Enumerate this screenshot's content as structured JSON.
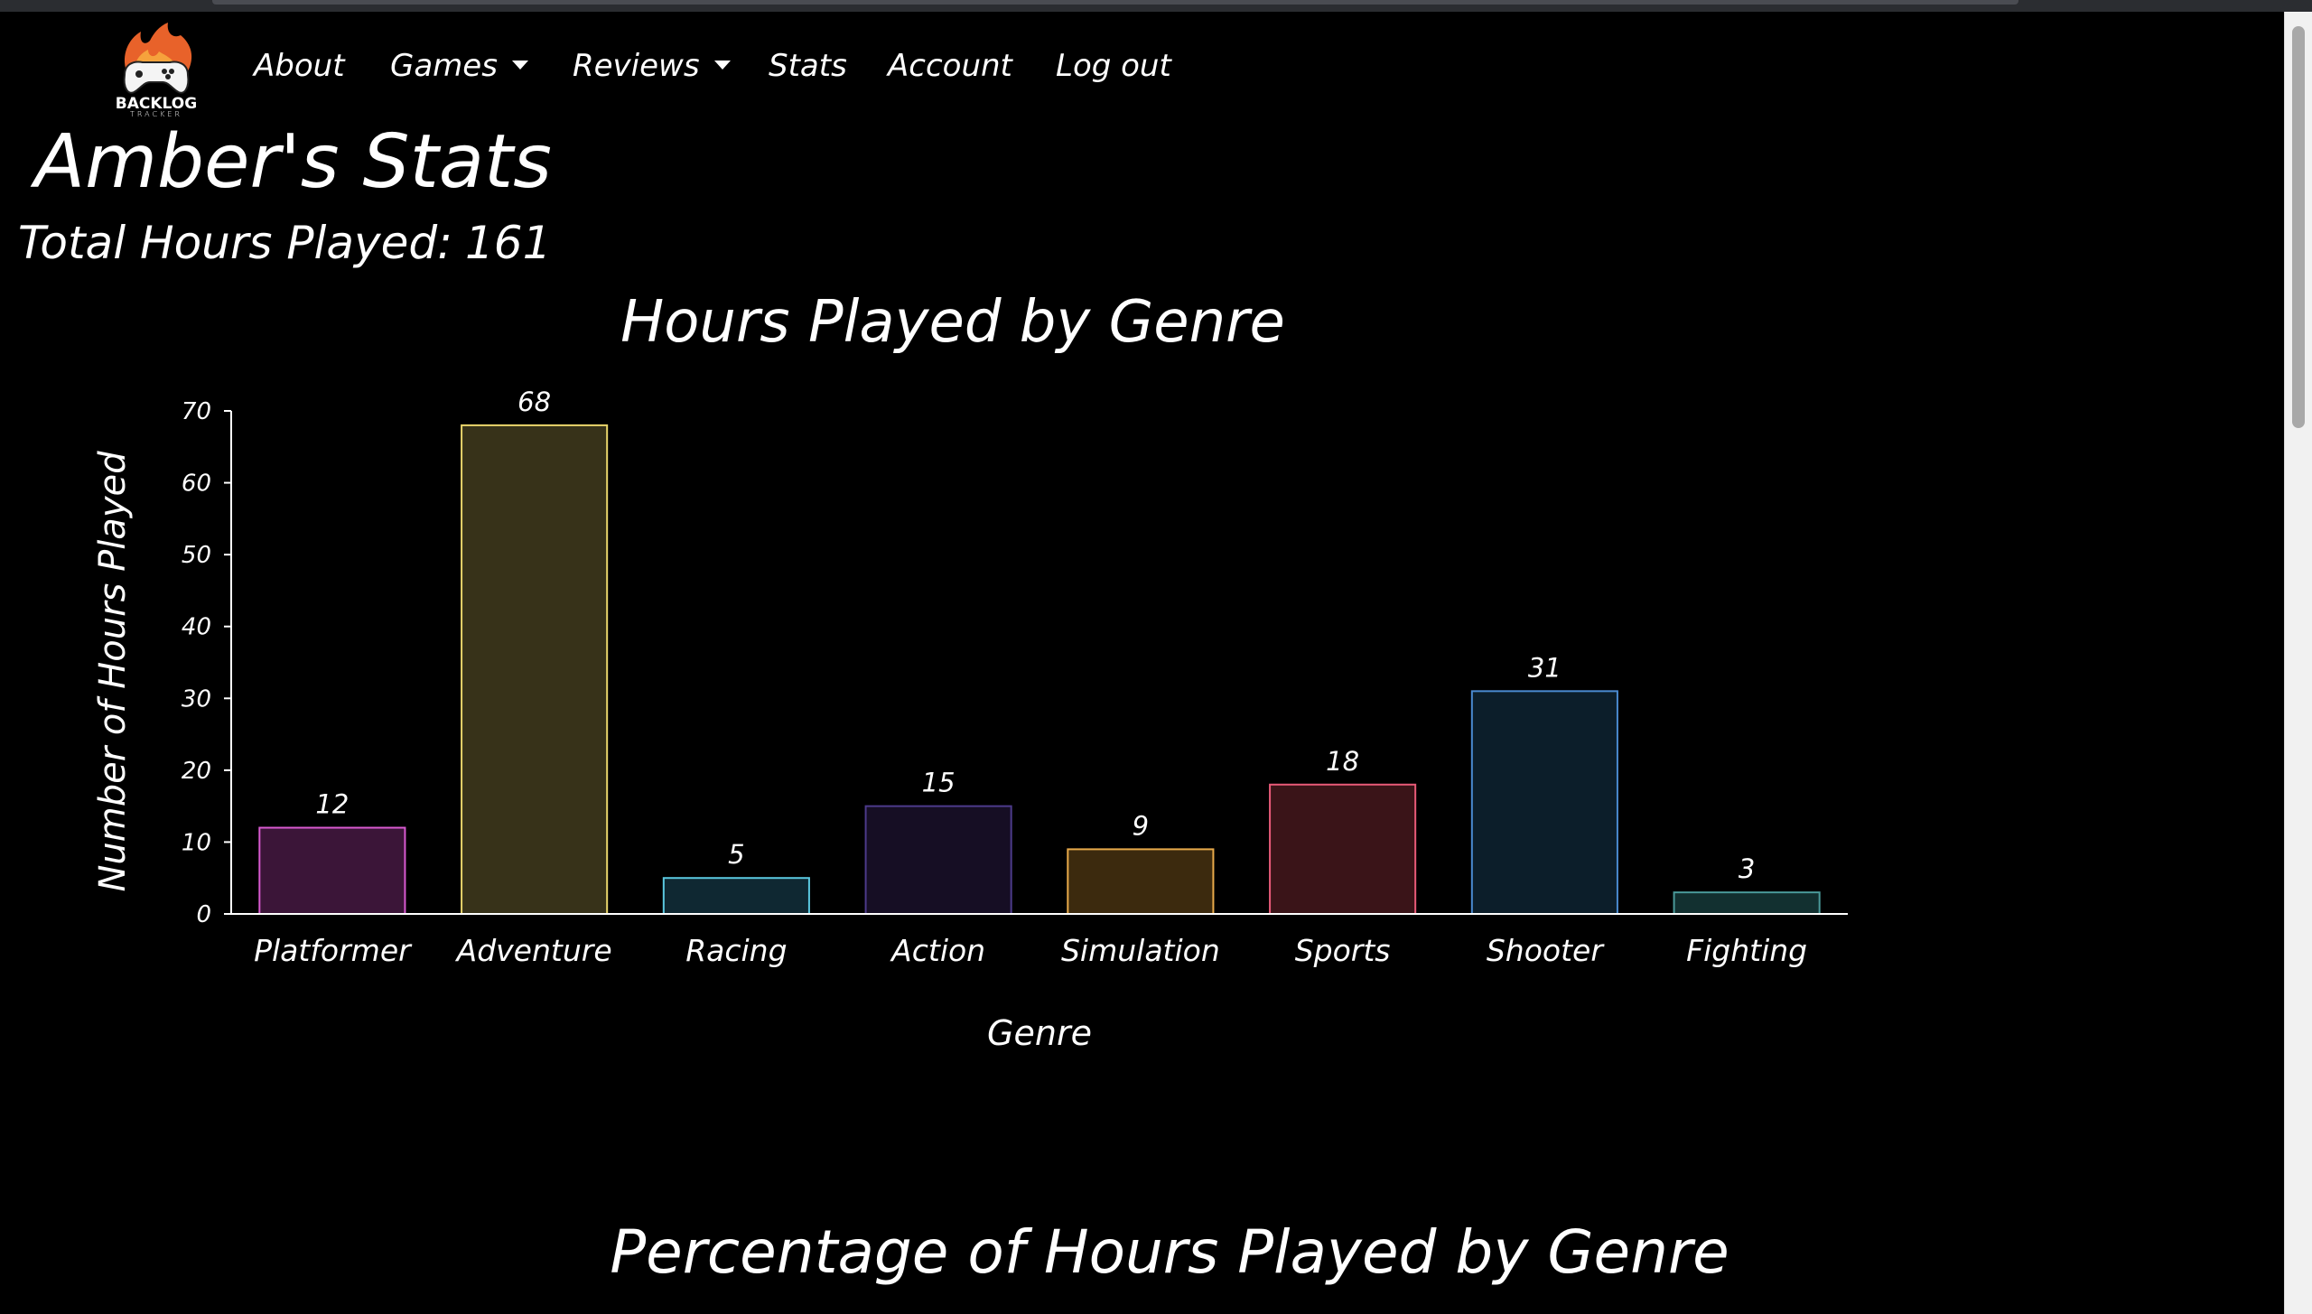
{
  "nav": {
    "logo_text": "BACKLOG",
    "logo_subtext": "TRACKER",
    "items": [
      {
        "label": "About"
      },
      {
        "label": "Games"
      },
      {
        "label": "Reviews"
      },
      {
        "label": "Stats"
      },
      {
        "label": "Account"
      },
      {
        "label": "Log out"
      }
    ]
  },
  "page": {
    "title": "Amber's Stats",
    "total_hours_label": "Total Hours Played:",
    "total_hours_value": "161"
  },
  "chart_data": {
    "type": "bar",
    "title": "Hours Played by Genre",
    "xlabel": "Genre",
    "ylabel": "Number of Hours Played",
    "ylim": [
      0,
      70
    ],
    "yticks": [
      0,
      10,
      20,
      30,
      40,
      50,
      60,
      70
    ],
    "categories": [
      "Platformer",
      "Adventure",
      "Racing",
      "Action",
      "Simulation",
      "Sports",
      "Shooter",
      "Fighting"
    ],
    "values": [
      12,
      68,
      5,
      15,
      9,
      18,
      31,
      3
    ],
    "colors": [
      {
        "fill": "#3b1538",
        "stroke": "#d85ad0"
      },
      {
        "fill": "#373219",
        "stroke": "#e8d46a"
      },
      {
        "fill": "#0f2832",
        "stroke": "#5ac8e0"
      },
      {
        "fill": "#160e24",
        "stroke": "#4c3a8a"
      },
      {
        "fill": "#3c2a0e",
        "stroke": "#e8aa4a"
      },
      {
        "fill": "#3a1418",
        "stroke": "#e85a78"
      },
      {
        "fill": "#0c1e2a",
        "stroke": "#4a8ad0"
      },
      {
        "fill": "#123030",
        "stroke": "#4a9a9a"
      }
    ],
    "grid": false,
    "legend": "none"
  },
  "second_chart": {
    "title": "Percentage of Hours Played by Genre"
  }
}
